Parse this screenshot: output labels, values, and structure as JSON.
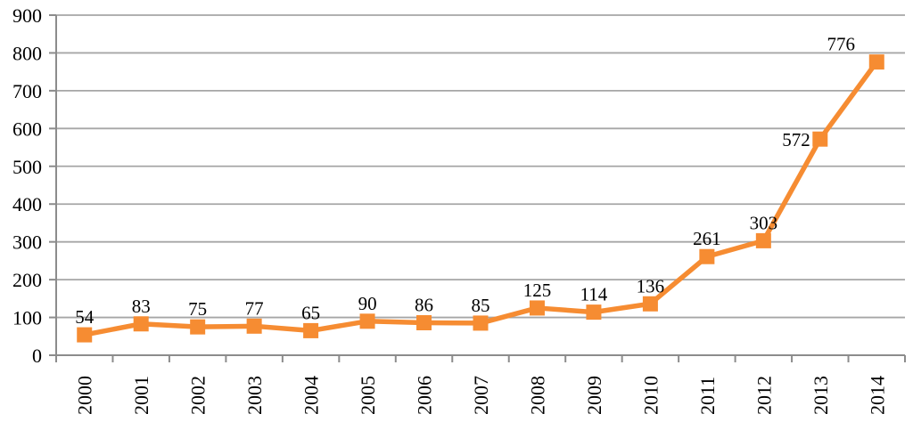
{
  "chart_data": {
    "type": "line",
    "title": "",
    "xlabel": "",
    "ylabel": "",
    "categories": [
      "2000",
      "2001",
      "2002",
      "2003",
      "2004",
      "2005",
      "2006",
      "2007",
      "2008",
      "2009",
      "2010",
      "2011",
      "2012",
      "2013",
      "2014"
    ],
    "series": [
      {
        "name": "",
        "values": [
          54,
          83,
          75,
          77,
          65,
          90,
          86,
          85,
          125,
          114,
          136,
          261,
          303,
          572,
          776
        ]
      }
    ],
    "data_labels": [
      "54",
      "83",
      "75",
      "77",
      "65",
      "90",
      "86",
      "85",
      "125",
      "114",
      "136",
      "261",
      "303",
      "572",
      "776"
    ],
    "ylim": [
      0,
      900
    ],
    "ytick_step": 100,
    "yticks": [
      "0",
      "100",
      "200",
      "300",
      "400",
      "500",
      "600",
      "700",
      "800",
      "900"
    ],
    "grid": "horizontal",
    "legend": "none",
    "marker": "square",
    "colors": {
      "series": "#F68C32",
      "gridline": "#A6A6A6",
      "axis": "#8C8C8C",
      "text": "#000000"
    },
    "label_overrides": {
      "13": {
        "dx": -11,
        "dy": 21,
        "anchor": "end"
      },
      "14": {
        "dx": -40,
        "dy": 0,
        "anchor": "middle"
      }
    }
  }
}
